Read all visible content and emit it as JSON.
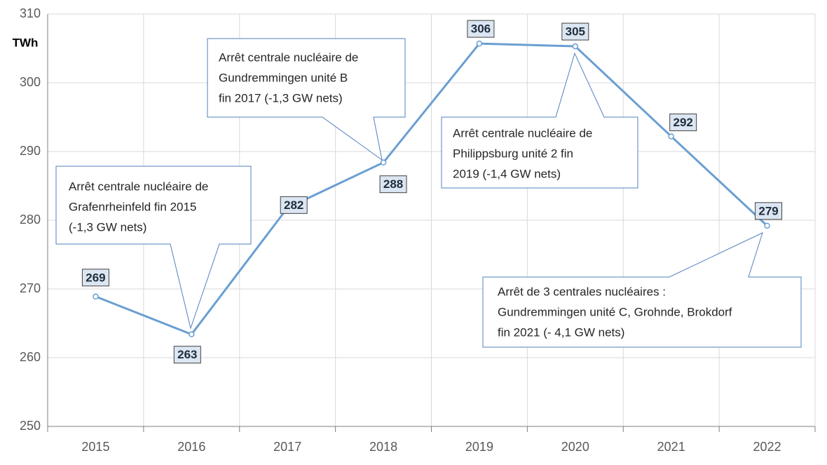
{
  "chart_data": {
    "type": "line",
    "y_label": "TWh",
    "categories": [
      "2015",
      "2016",
      "2017",
      "2018",
      "2019",
      "2020",
      "2021",
      "2022"
    ],
    "series": [
      {
        "color": "#6a9fd2",
        "values": [
          268.9,
          263.4,
          281.8,
          288.4,
          305.7,
          305.3,
          292.2,
          279.2
        ],
        "value_labels": [
          "269",
          "263",
          "282",
          "288",
          "306",
          "305",
          "292",
          "279"
        ]
      }
    ],
    "ylim": [
      250,
      310
    ],
    "yticks": [
      250,
      260,
      270,
      280,
      290,
      300,
      310
    ],
    "grid": true,
    "annotations": [
      [
        "Arrêt centrale nucléaire de",
        "Grafenrheinfeld fin 2015",
        "(-1,3 GW nets)"
      ],
      [
        "Arrêt centrale nucléaire de",
        "Gundremmingen unité B",
        "fin 2017 (-1,3 GW nets)"
      ],
      [
        "Arrêt centrale nucléaire de",
        "Philippsburg unité 2 fin",
        "2019 (-1,4 GW nets)"
      ],
      [
        "Arrêt de 3 centrales nucléaires :",
        "Gundremmingen unité C, Grohnde, Brokdorf",
        "fin 2021 (- 4,1 GW nets)"
      ]
    ]
  }
}
